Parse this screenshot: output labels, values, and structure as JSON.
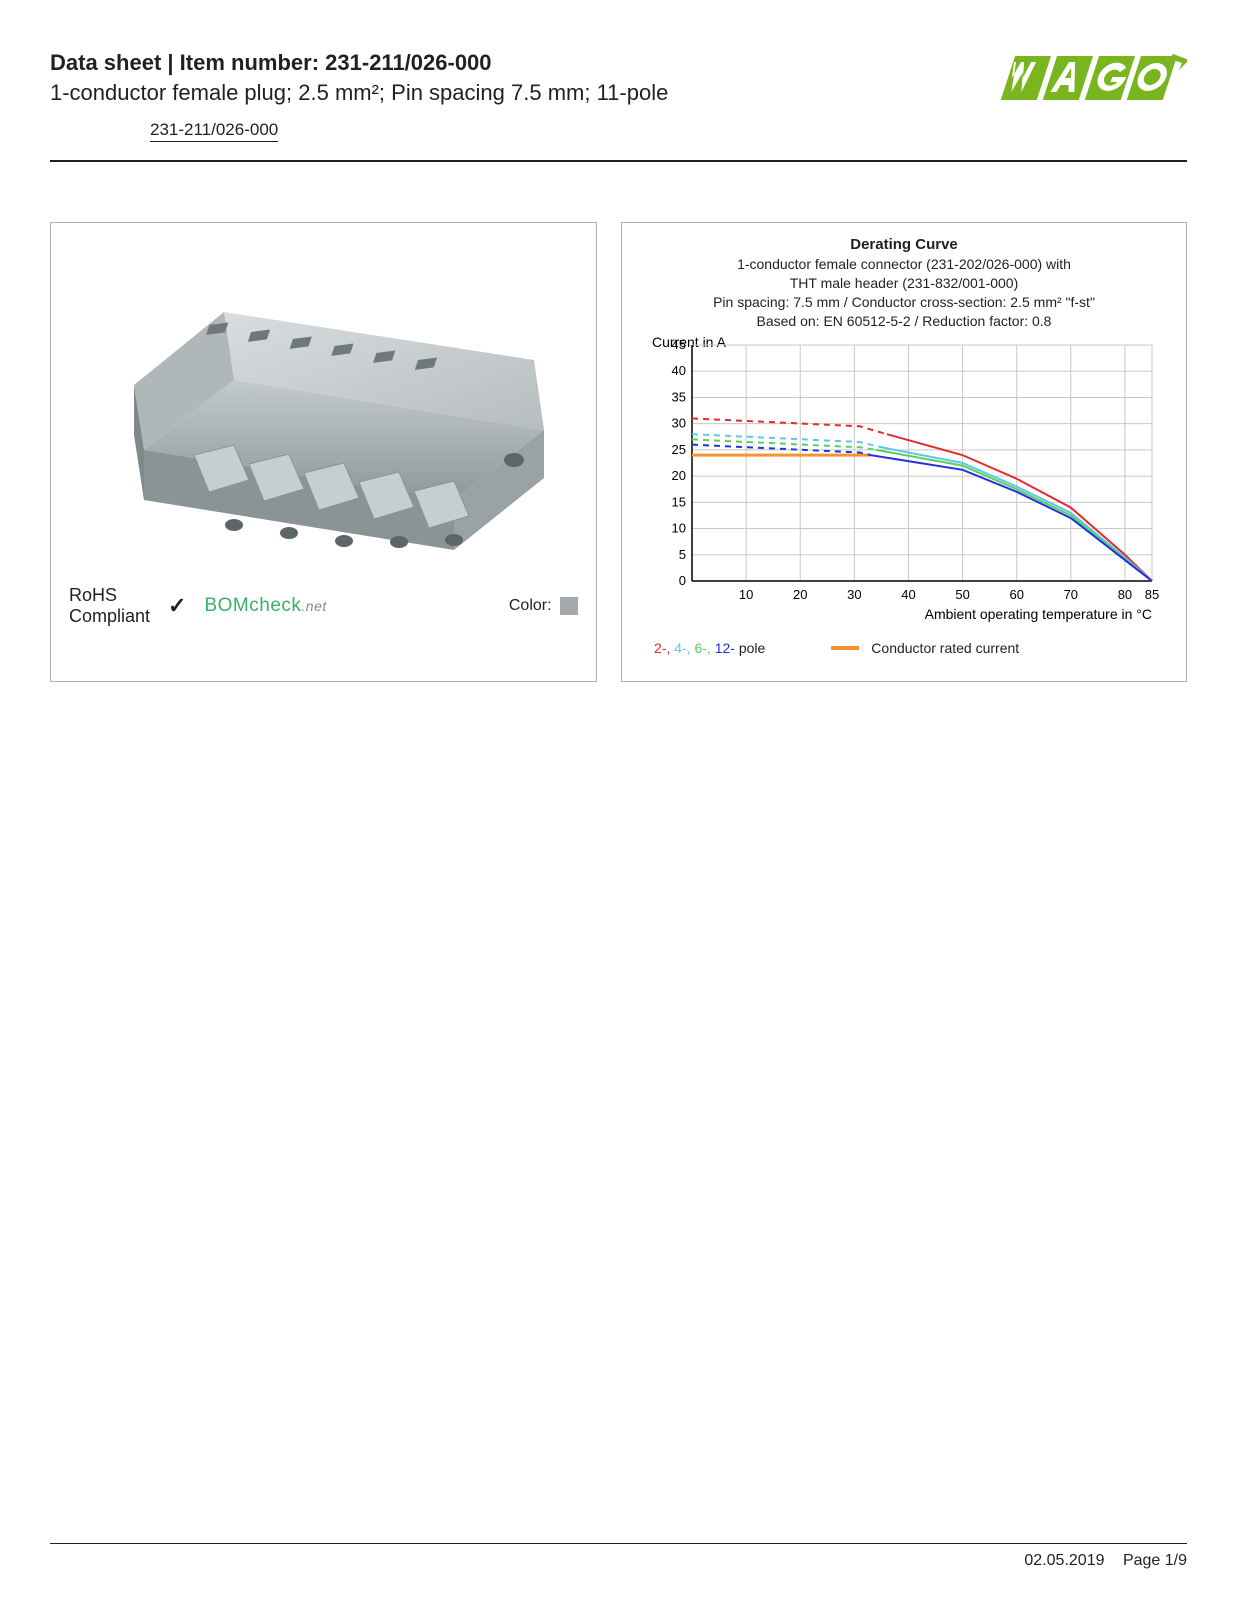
{
  "header": {
    "title_prefix": "Data sheet",
    "title_sep": "  |  ",
    "title_label": "Item number:",
    "item_number": "231-211/026-000",
    "subtitle": "1-conductor female plug; 2.5 mm²; Pin spacing 7.5 mm; 11-pole",
    "link": "231-211/026-000",
    "logo_text": "WAGO",
    "logo_color": "#78b51e"
  },
  "product_panel": {
    "rohs_line1": "RoHS",
    "rohs_line2": "Compliant",
    "check": "✓",
    "bomcheck": "BOMcheck",
    "bomcheck_suffix": ".net",
    "color_label": "Color:",
    "color_swatch": "#a6a9ab",
    "connector_color": "#a9b0b3"
  },
  "chart": {
    "title": "Derating Curve",
    "line1": "1-conductor female connector (231-202/026-000) with",
    "line2": "THT male header (231-832/001-000)",
    "line3": "Pin spacing: 7.5 mm / Conductor cross-section: 2.5 mm² \"f-st\"",
    "line4": "Based on: EN 60512-5-2 / Reduction factor: 0.8",
    "y_label": "Current in A",
    "x_label": "Ambient operating temperature in °C",
    "y_ticks": [
      0,
      5,
      10,
      15,
      20,
      25,
      30,
      35,
      40,
      45
    ],
    "x_ticks": [
      10,
      20,
      30,
      40,
      50,
      60,
      70,
      80,
      85
    ],
    "ylim": [
      0,
      45
    ],
    "xlim": [
      0,
      85
    ],
    "grid_color": "#c8c8c8",
    "axis_color": "#000000",
    "conductor_color": "#f59331",
    "series": {
      "p2": {
        "color": "#e6292e",
        "label": "2-",
        "dash": [
          [
            0,
            31
          ],
          [
            31,
            29.5
          ],
          [
            36,
            28
          ]
        ],
        "solid": [
          [
            36,
            28
          ],
          [
            50,
            24
          ],
          [
            60,
            19.5
          ],
          [
            70,
            14
          ],
          [
            80,
            5
          ],
          [
            85,
            0
          ]
        ]
      },
      "p4": {
        "color": "#5fc6e8",
        "label": "4-",
        "dash": [
          [
            0,
            28
          ],
          [
            31,
            26.5
          ],
          [
            35,
            25.5
          ]
        ],
        "solid": [
          [
            35,
            25.5
          ],
          [
            50,
            22.5
          ],
          [
            60,
            18
          ],
          [
            70,
            13
          ],
          [
            80,
            4.5
          ],
          [
            85,
            0
          ]
        ]
      },
      "p6": {
        "color": "#5ad05a",
        "label": "6-",
        "dash": [
          [
            0,
            27
          ],
          [
            31,
            25.5
          ],
          [
            34,
            25
          ]
        ],
        "solid": [
          [
            34,
            25
          ],
          [
            50,
            22
          ],
          [
            60,
            17.5
          ],
          [
            70,
            12.5
          ],
          [
            80,
            4.2
          ],
          [
            85,
            0
          ]
        ]
      },
      "p12": {
        "color": "#2233dd",
        "label": "12-",
        "dash": [
          [
            0,
            26
          ],
          [
            31,
            24.5
          ],
          [
            33,
            24
          ]
        ],
        "solid": [
          [
            33,
            24
          ],
          [
            50,
            21.2
          ],
          [
            60,
            17
          ],
          [
            70,
            12
          ],
          [
            80,
            4
          ],
          [
            85,
            0
          ]
        ]
      }
    },
    "conductor_line": [
      [
        0,
        24
      ],
      [
        33,
        24
      ]
    ],
    "legend_pole_suffix": " pole",
    "legend_conductor": "Conductor rated current"
  },
  "footer": {
    "date": "02.05.2019",
    "page": "Page 1/9"
  }
}
